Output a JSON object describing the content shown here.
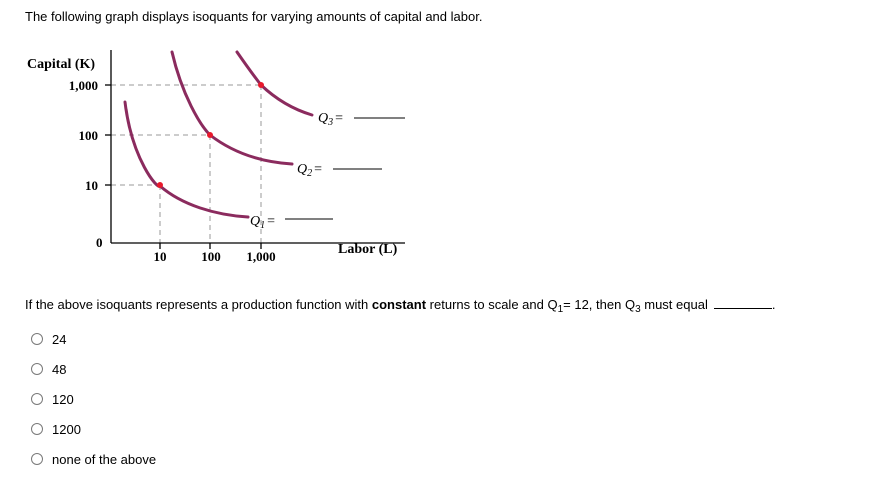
{
  "intro_text": "The following graph displays isoquants for varying amounts of capital and labor.",
  "graph": {
    "y_axis_label": "Capital (K)",
    "x_axis_label": "Labor (L)",
    "origin_label": "0",
    "y_ticks": [
      "1,000",
      "100",
      "10"
    ],
    "x_ticks": [
      "10",
      "100",
      "1,000"
    ],
    "isoquants": [
      {
        "symbol": "Q",
        "sub": "1",
        "suffix": "="
      },
      {
        "symbol": "Q",
        "sub": "2",
        "suffix": "="
      },
      {
        "symbol": "Q",
        "sub": "3",
        "suffix": "="
      }
    ],
    "curve_color": "#8b2b5e",
    "point_color": "#e8192c",
    "guide_color": "#9a9a9a"
  },
  "question": {
    "part1": "If the above isoquants represents a production function with ",
    "bold": "constant",
    "part2": " returns to scale and Q",
    "sub1": "1",
    "part3": "= 12, then Q",
    "sub2": "3",
    "part4": " must equal",
    "end": "."
  },
  "options": [
    {
      "label": "24"
    },
    {
      "label": "48"
    },
    {
      "label": "120"
    },
    {
      "label": "1200"
    },
    {
      "label": "none of the above"
    }
  ]
}
